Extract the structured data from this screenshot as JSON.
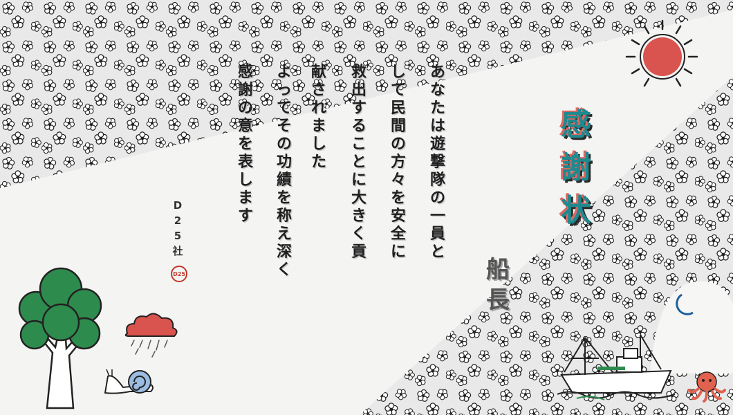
{
  "letter": {
    "lines": [
      "あなたは遊撃隊の一員と",
      "して民間の方々を安全に",
      "救出することに大きく貢",
      "献されました",
      "よってその功績を称え深く",
      "感謝の意を表します"
    ]
  },
  "title": "感謝状",
  "recipient": "船長",
  "signature": {
    "text": "D25社",
    "seal": "D25"
  },
  "colors": {
    "teal": "#1e8a8f",
    "red": "#d9534f",
    "green": "#2e8b4e",
    "text": "#1f1f1f"
  },
  "decorations": [
    "sun-icon",
    "moon-icon",
    "tree-icon",
    "cloud-icon",
    "snail-icon",
    "ship-icon",
    "octopus-icon",
    "blossom-pattern"
  ]
}
